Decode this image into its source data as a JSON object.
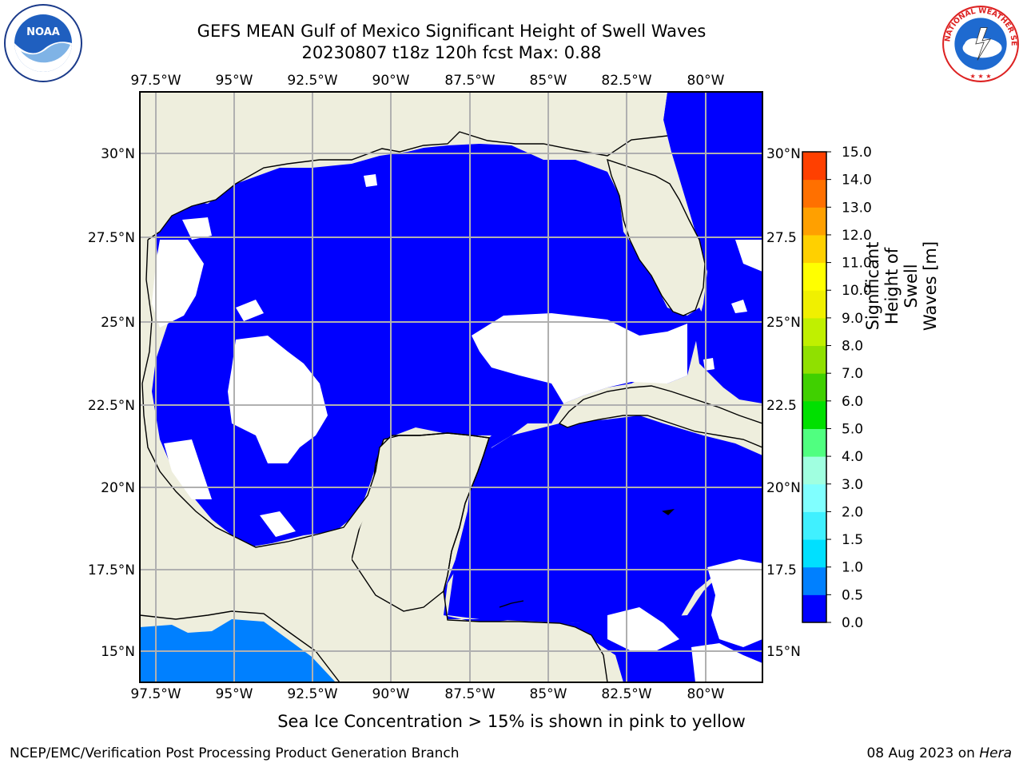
{
  "title": "GEFS MEAN Gulf of Mexico Significant Height of Swell Waves",
  "subtitle": "20230807 t18z 120h fcst   Max: 0.88",
  "lon_labels": [
    "97.5°W",
    "95°W",
    "92.5°W",
    "90°W",
    "87.5°W",
    "85°W",
    "82.5°W",
    "80°W"
  ],
  "lat_labels_left": [
    "30°N",
    "27.5°N",
    "25°N",
    "22.5°N",
    "20°N",
    "17.5°N",
    "15°N"
  ],
  "lat_labels_right": [
    "30°N",
    "27.5",
    "25°N",
    "22.5",
    "20°N",
    "17.5",
    "15°N"
  ],
  "colorbar": {
    "label": "Significant Height of Swell Waves [m]",
    "ticks": [
      "0.0",
      "0.5",
      "1.0",
      "1.5",
      "2.0",
      "3.0",
      "4.0",
      "5.0",
      "6.0",
      "7.0",
      "8.0",
      "9.0",
      "10.0",
      "11.0",
      "12.0",
      "13.0",
      "14.0",
      "15.0"
    ],
    "colors": [
      "#0000ff",
      "#0080ff",
      "#00e0ff",
      "#40f0ff",
      "#80ffff",
      "#a0ffe0",
      "#50ff80",
      "#00e000",
      "#40d000",
      "#90e000",
      "#c0f000",
      "#f0f000",
      "#ffff00",
      "#ffd000",
      "#ffa000",
      "#ff7000",
      "#ff4000",
      "#ff0000"
    ]
  },
  "colors": {
    "land": "#eeeedd",
    "sea_low": "#0000ff",
    "sea_mid": "#0080ff",
    "grid": "#b0b0b0"
  },
  "footer_note": "Sea Ice Concentration > 15% is shown in pink to yellow",
  "credit": "NCEP/EMC/Verification Post Processing Product Generation Branch",
  "date": "08 Aug 2023 on",
  "machine": "Hera",
  "logos": {
    "left": "NOAA",
    "right_text": "NATIONAL WEATHER SERVICE"
  }
}
